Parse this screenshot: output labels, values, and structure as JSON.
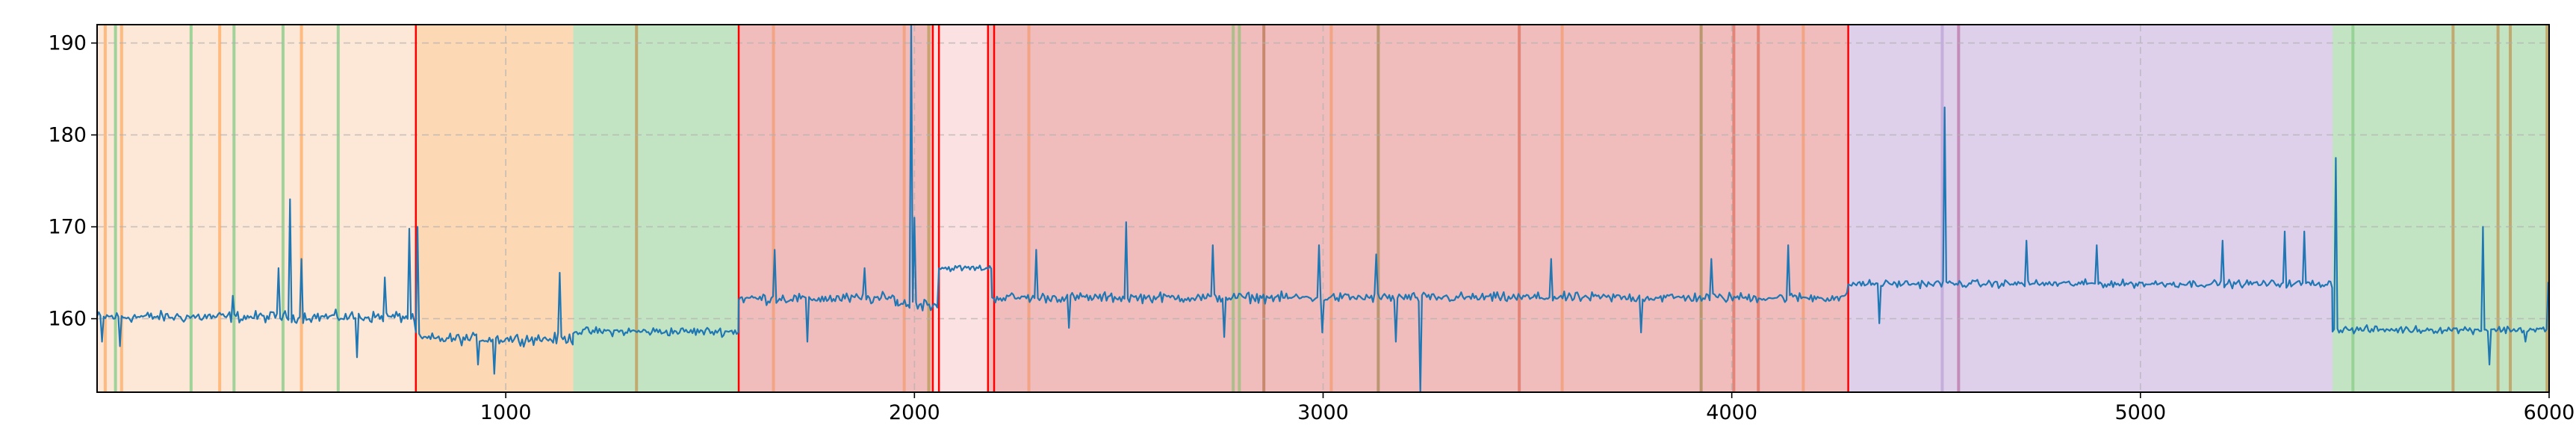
{
  "chart_data": {
    "type": "line",
    "title": "",
    "xlabel": "",
    "ylabel": "",
    "xlim": [
      0,
      6000
    ],
    "ylim": [
      152,
      192
    ],
    "x_ticks": [
      1000,
      2000,
      3000,
      4000,
      5000,
      6000
    ],
    "x_tick_labels": [
      "1000",
      "2000",
      "3000",
      "4000",
      "5000",
      "6000"
    ],
    "y_ticks": [
      160,
      170,
      180,
      190
    ],
    "y_tick_labels": [
      "160",
      "170",
      "180",
      "190"
    ],
    "grid": true,
    "grid_style": "dashed",
    "legend": "none",
    "line_color": "#1f77b4",
    "regions": [
      {
        "start": 0,
        "end": 780,
        "color": "#fde7d6"
      },
      {
        "start": 780,
        "end": 1165,
        "color": "#fdd8b5"
      },
      {
        "start": 1165,
        "end": 1570,
        "color": "#c2e4c2"
      },
      {
        "start": 1570,
        "end": 2045,
        "color": "#f0bcbc"
      },
      {
        "start": 2045,
        "end": 2180,
        "color": "#fbe1e1"
      },
      {
        "start": 2180,
        "end": 4285,
        "color": "#f0bcbc"
      },
      {
        "start": 4285,
        "end": 5470,
        "color": "#ded0ea"
      },
      {
        "start": 5470,
        "end": 6000,
        "color": "#c2e4c2"
      }
    ],
    "change_points": [
      780,
      1570,
      2045,
      2060,
      2180,
      2195,
      4285
    ],
    "change_point_color": "#ff0000",
    "event_lines": [
      {
        "x": 20,
        "color": "#ffb270"
      },
      {
        "x": 45,
        "color": "#8fcf8f"
      },
      {
        "x": 60,
        "color": "#ffb270"
      },
      {
        "x": 230,
        "color": "#8fcf8f"
      },
      {
        "x": 300,
        "color": "#ffb270"
      },
      {
        "x": 335,
        "color": "#8fcf8f"
      },
      {
        "x": 455,
        "color": "#8fcf8f"
      },
      {
        "x": 500,
        "color": "#ffb270"
      },
      {
        "x": 590,
        "color": "#8fcf8f"
      },
      {
        "x": 1320,
        "color": "#c0a060"
      },
      {
        "x": 1655,
        "color": "#f2a07a"
      },
      {
        "x": 1975,
        "color": "#f2a07a"
      },
      {
        "x": 2035,
        "color": "#c0a060"
      },
      {
        "x": 2280,
        "color": "#f2a07a"
      },
      {
        "x": 2780,
        "color": "#a0c080"
      },
      {
        "x": 2795,
        "color": "#a0c080"
      },
      {
        "x": 2855,
        "color": "#c08060"
      },
      {
        "x": 3020,
        "color": "#f2a07a"
      },
      {
        "x": 3135,
        "color": "#b09060"
      },
      {
        "x": 3480,
        "color": "#e07a6a"
      },
      {
        "x": 3585,
        "color": "#f2a07a"
      },
      {
        "x": 3925,
        "color": "#b09060"
      },
      {
        "x": 4005,
        "color": "#e07a6a"
      },
      {
        "x": 4065,
        "color": "#e07a6a"
      },
      {
        "x": 4175,
        "color": "#f2a07a"
      },
      {
        "x": 4515,
        "color": "#c0a8d8"
      },
      {
        "x": 4555,
        "color": "#c080b0"
      },
      {
        "x": 5520,
        "color": "#8fcf8f"
      },
      {
        "x": 5765,
        "color": "#c0a060"
      },
      {
        "x": 5875,
        "color": "#c0a060"
      },
      {
        "x": 5905,
        "color": "#c0a060"
      },
      {
        "x": 5995,
        "color": "#c0a060"
      }
    ],
    "series": [
      {
        "segments": [
          {
            "start": 0,
            "end": 780,
            "mean": 160.2,
            "noise": 0.9
          },
          {
            "start": 780,
            "end": 1165,
            "mean": 157.8,
            "noise": 0.9
          },
          {
            "start": 1165,
            "end": 1570,
            "mean": 158.6,
            "noise": 0.7
          },
          {
            "start": 1570,
            "end": 1960,
            "mean": 162.2,
            "noise": 0.9
          },
          {
            "start": 1960,
            "end": 2060,
            "mean": 161.6,
            "noise": 1.0
          },
          {
            "start": 2060,
            "end": 2190,
            "mean": 165.5,
            "noise": 0.5
          },
          {
            "start": 2190,
            "end": 4285,
            "mean": 162.3,
            "noise": 0.8
          },
          {
            "start": 4285,
            "end": 5470,
            "mean": 163.8,
            "noise": 0.6
          },
          {
            "start": 5470,
            "end": 6000,
            "mean": 158.8,
            "noise": 0.6
          }
        ],
        "spikes": [
          {
            "x": 10,
            "y": 157.5
          },
          {
            "x": 55,
            "y": 157.0
          },
          {
            "x": 330,
            "y": 162.5
          },
          {
            "x": 445,
            "y": 165.5
          },
          {
            "x": 470,
            "y": 173.0
          },
          {
            "x": 500,
            "y": 166.5
          },
          {
            "x": 635,
            "y": 155.8
          },
          {
            "x": 705,
            "y": 164.5
          },
          {
            "x": 765,
            "y": 169.8
          },
          {
            "x": 785,
            "y": 170.0
          },
          {
            "x": 930,
            "y": 155.0
          },
          {
            "x": 970,
            "y": 154.0
          },
          {
            "x": 1130,
            "y": 165.0
          },
          {
            "x": 1660,
            "y": 167.5
          },
          {
            "x": 1740,
            "y": 157.5
          },
          {
            "x": 1880,
            "y": 165.5
          },
          {
            "x": 1990,
            "y": 192.0
          },
          {
            "x": 2000,
            "y": 171.0
          },
          {
            "x": 2300,
            "y": 167.5
          },
          {
            "x": 2380,
            "y": 159.0
          },
          {
            "x": 2520,
            "y": 170.5
          },
          {
            "x": 2730,
            "y": 168.0
          },
          {
            "x": 2760,
            "y": 158.0
          },
          {
            "x": 2990,
            "y": 168.0
          },
          {
            "x": 3000,
            "y": 158.5
          },
          {
            "x": 3130,
            "y": 167.0
          },
          {
            "x": 3180,
            "y": 157.5
          },
          {
            "x": 3240,
            "y": 151.0
          },
          {
            "x": 3560,
            "y": 166.5
          },
          {
            "x": 3780,
            "y": 158.5
          },
          {
            "x": 3950,
            "y": 166.5
          },
          {
            "x": 4140,
            "y": 168.0
          },
          {
            "x": 4360,
            "y": 159.5
          },
          {
            "x": 4520,
            "y": 183.0
          },
          {
            "x": 4720,
            "y": 168.5
          },
          {
            "x": 4890,
            "y": 168.0
          },
          {
            "x": 5200,
            "y": 168.5
          },
          {
            "x": 5350,
            "y": 169.5
          },
          {
            "x": 5400,
            "y": 169.5
          },
          {
            "x": 5480,
            "y": 177.5
          },
          {
            "x": 5840,
            "y": 170.0
          },
          {
            "x": 5855,
            "y": 155.0
          },
          {
            "x": 5945,
            "y": 157.5
          },
          {
            "x": 5998,
            "y": 164.0
          }
        ]
      }
    ]
  }
}
